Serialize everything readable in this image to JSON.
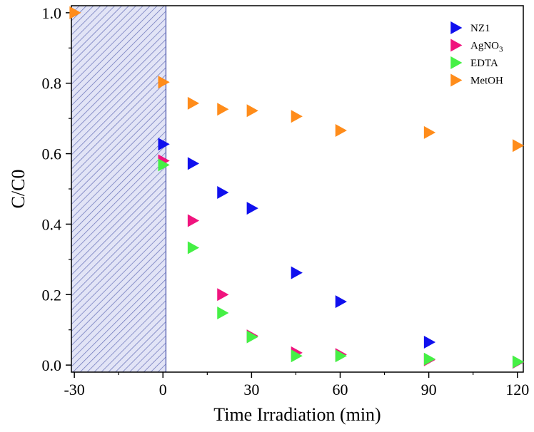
{
  "chart_data": {
    "type": "scatter",
    "xlabel": "Time Irradiation (min)",
    "ylabel": "C/C0",
    "xlim": [
      -31,
      122
    ],
    "ylim": [
      -0.02,
      1.02
    ],
    "xticks": [
      -30,
      0,
      30,
      60,
      90,
      120
    ],
    "xtick_labels": [
      "-30",
      "0",
      "30",
      "60",
      "90",
      "120"
    ],
    "yticks": [
      0.0,
      0.2,
      0.4,
      0.6,
      0.8,
      1.0
    ],
    "ytick_labels": [
      "0.0",
      "0.2",
      "0.4",
      "0.6",
      "0.8",
      "1.0"
    ],
    "dark_region": {
      "x_start": -31,
      "x_end": 1,
      "pattern": "diagonal hatch",
      "color": "#c9cdeb"
    },
    "legend_position": "top-right",
    "grid": false,
    "series": [
      {
        "name": "NZ1",
        "color": "#1010ee",
        "marker": "triangle-right",
        "x": [
          0,
          10,
          20,
          30,
          45,
          60,
          90,
          120
        ],
        "y": [
          0.627,
          0.572,
          0.49,
          0.445,
          0.262,
          0.18,
          0.065,
          0.008
        ]
      },
      {
        "name": "AgNO3",
        "name_main": "AgNO",
        "name_sub": "3",
        "color": "#f0147e",
        "marker": "triangle-right",
        "x": [
          0,
          10,
          20,
          30,
          45,
          60,
          90,
          120
        ],
        "y": [
          0.58,
          0.41,
          0.2,
          0.083,
          0.035,
          0.03,
          0.015,
          0.008
        ]
      },
      {
        "name": "EDTA",
        "color": "#45f045",
        "marker": "triangle-right",
        "x": [
          0,
          10,
          20,
          30,
          45,
          60,
          90,
          120
        ],
        "y": [
          0.568,
          0.333,
          0.148,
          0.08,
          0.026,
          0.026,
          0.017,
          0.009
        ]
      },
      {
        "name": "MetOH",
        "color": "#ff8c1a",
        "marker": "triangle-right",
        "x": [
          -30,
          0,
          10,
          20,
          30,
          45,
          60,
          90,
          120
        ],
        "y": [
          1.0,
          0.803,
          0.743,
          0.726,
          0.722,
          0.706,
          0.666,
          0.66,
          0.623
        ]
      }
    ]
  }
}
